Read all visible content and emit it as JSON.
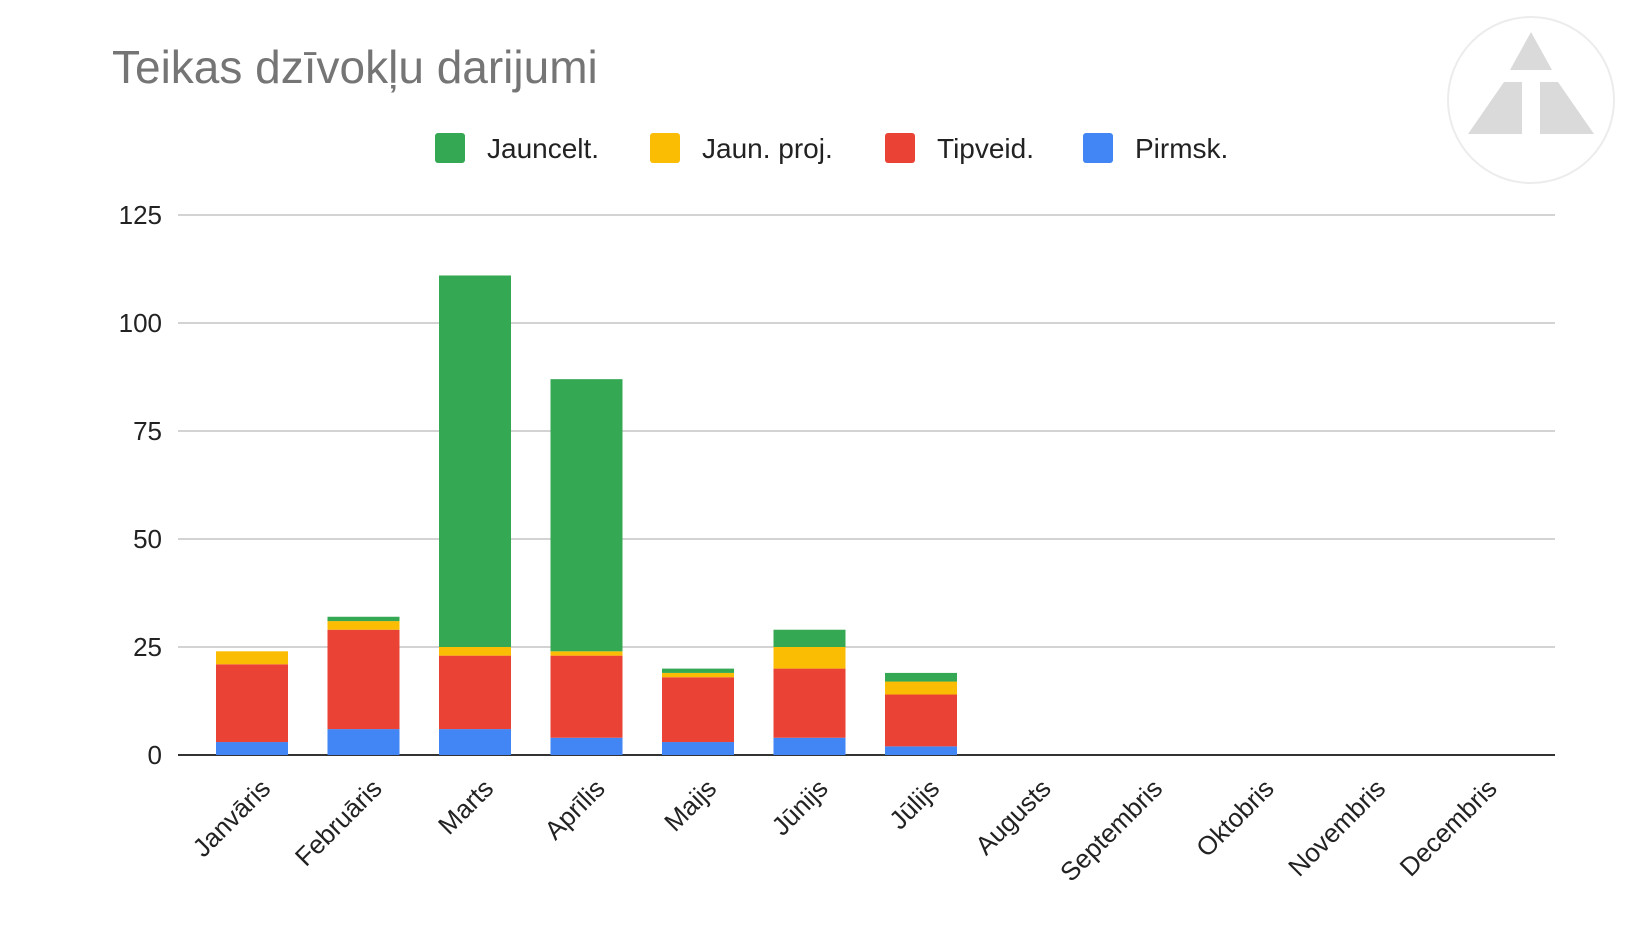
{
  "chart_data": {
    "type": "bar",
    "stacked": true,
    "title": "Teikas dzīvokļu darijumi",
    "xlabel": "",
    "ylabel": "",
    "ylim": [
      0,
      125
    ],
    "yticks": [
      0,
      25,
      50,
      75,
      100,
      125
    ],
    "grid": true,
    "legend_position": "top",
    "categories": [
      "Janvāris",
      "Februāris",
      "Marts",
      "Aprīlis",
      "Maijs",
      "Jūnijs",
      "Jūlijs",
      "Augusts",
      "Septembris",
      "Oktobris",
      "Novembris",
      "Decembris"
    ],
    "series": [
      {
        "name": "Pirmsk.",
        "color": "#4285f4",
        "values": [
          3,
          6,
          6,
          4,
          3,
          4,
          2,
          0,
          0,
          0,
          0,
          0
        ]
      },
      {
        "name": "Tipveid.",
        "color": "#ea4335",
        "values": [
          18,
          23,
          17,
          19,
          15,
          16,
          12,
          0,
          0,
          0,
          0,
          0
        ]
      },
      {
        "name": "Jaun. proj.",
        "color": "#fbbc04",
        "values": [
          3,
          2,
          2,
          1,
          1,
          5,
          3,
          0,
          0,
          0,
          0,
          0
        ]
      },
      {
        "name": "Jauncelt.",
        "color": "#34a853",
        "values": [
          0,
          1,
          86,
          63,
          1,
          4,
          2,
          0,
          0,
          0,
          0,
          0
        ]
      }
    ],
    "legend_order": [
      "Jauncelt.",
      "Jaun. proj.",
      "Tipveid.",
      "Pirmsk."
    ]
  },
  "logo": {
    "name": "triangle-logo-icon",
    "color": "#dadada"
  }
}
